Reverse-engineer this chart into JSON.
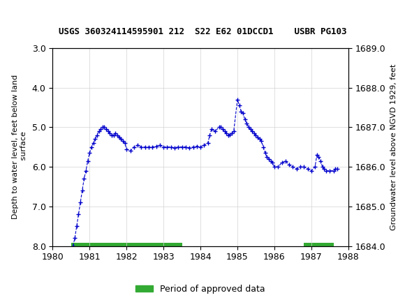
{
  "title": "USGS 360324114595901 212  S22 E62 01DCCD1    USBR PG103",
  "ylabel_left": "Depth to water level, feet below land\n surface",
  "ylabel_right": "Groundwater level above NGVD 1929, feet",
  "xlabel": "",
  "ylim_left": [
    3.0,
    8.0
  ],
  "ylim_right": [
    1684.0,
    1689.0
  ],
  "xlim": [
    1980,
    1988
  ],
  "xticks": [
    1980,
    1981,
    1982,
    1983,
    1984,
    1985,
    1986,
    1987,
    1988
  ],
  "yticks_left": [
    3.0,
    4.0,
    5.0,
    6.0,
    7.0,
    8.0
  ],
  "yticks_right": [
    1685.0,
    1686.0,
    1687.0,
    1688.0,
    1689.0
  ],
  "header_color": "#1a6b3c",
  "line_color": "#0000cc",
  "marker_color": "#0000cc",
  "approved_color": "#33aa33",
  "background_color": "#ffffff",
  "legend_label": "Period of approved data",
  "x_data": [
    1980.55,
    1980.6,
    1980.65,
    1980.7,
    1980.75,
    1980.8,
    1980.85,
    1980.9,
    1980.95,
    1981.0,
    1981.05,
    1981.1,
    1981.15,
    1981.2,
    1981.25,
    1981.3,
    1981.35,
    1981.4,
    1981.45,
    1981.5,
    1981.55,
    1981.6,
    1981.65,
    1981.7,
    1981.75,
    1981.8,
    1981.85,
    1981.9,
    1981.95,
    1982.0,
    1982.1,
    1982.2,
    1982.3,
    1982.4,
    1982.5,
    1982.6,
    1982.7,
    1982.8,
    1982.9,
    1983.0,
    1983.1,
    1983.2,
    1983.3,
    1983.4,
    1983.5,
    1983.6,
    1983.7,
    1983.8,
    1983.9,
    1984.0,
    1984.1,
    1984.2,
    1984.25,
    1984.3,
    1984.4,
    1984.5,
    1984.55,
    1984.6,
    1984.65,
    1984.7,
    1984.75,
    1984.8,
    1984.85,
    1984.9,
    1985.0,
    1985.05,
    1985.1,
    1985.15,
    1985.2,
    1985.25,
    1985.3,
    1985.35,
    1985.4,
    1985.45,
    1985.5,
    1985.55,
    1985.6,
    1985.65,
    1985.7,
    1985.75,
    1985.8,
    1985.85,
    1985.9,
    1985.95,
    1986.0,
    1986.1,
    1986.2,
    1986.3,
    1986.4,
    1986.5,
    1986.6,
    1986.7,
    1986.8,
    1986.9,
    1987.0,
    1987.1,
    1987.15,
    1987.2,
    1987.25,
    1987.3,
    1987.35,
    1987.4,
    1987.5,
    1987.6,
    1987.65,
    1987.7
  ],
  "y_data": [
    8.0,
    7.8,
    7.5,
    7.2,
    6.9,
    6.6,
    6.3,
    6.1,
    5.85,
    5.65,
    5.5,
    5.4,
    5.3,
    5.2,
    5.1,
    5.05,
    5.0,
    5.0,
    5.05,
    5.1,
    5.15,
    5.2,
    5.2,
    5.15,
    5.2,
    5.25,
    5.3,
    5.35,
    5.4,
    5.55,
    5.6,
    5.5,
    5.45,
    5.5,
    5.5,
    5.5,
    5.5,
    5.48,
    5.45,
    5.5,
    5.5,
    5.5,
    5.52,
    5.5,
    5.5,
    5.5,
    5.52,
    5.5,
    5.48,
    5.5,
    5.45,
    5.4,
    5.2,
    5.05,
    5.1,
    5.0,
    5.0,
    5.05,
    5.1,
    5.15,
    5.2,
    5.18,
    5.15,
    5.1,
    4.3,
    4.45,
    4.6,
    4.65,
    4.8,
    4.9,
    5.0,
    5.05,
    5.1,
    5.15,
    5.2,
    5.25,
    5.3,
    5.35,
    5.5,
    5.65,
    5.75,
    5.8,
    5.85,
    5.9,
    6.0,
    6.0,
    5.9,
    5.85,
    5.95,
    6.0,
    6.05,
    6.0,
    6.0,
    6.05,
    6.1,
    6.0,
    5.7,
    5.75,
    5.85,
    6.0,
    6.05,
    6.1,
    6.1,
    6.1,
    6.05,
    6.05
  ],
  "approved_bar_start": 1980.5,
  "approved_bar_end1": 1983.5,
  "approved_bar_start2": 1986.8,
  "approved_bar_end2": 1987.6
}
